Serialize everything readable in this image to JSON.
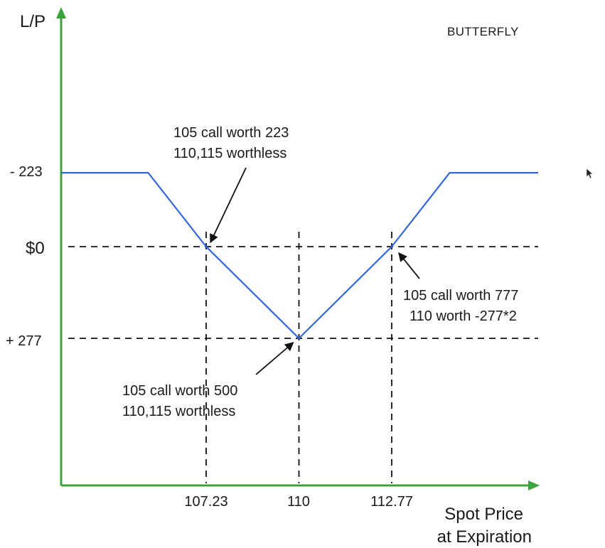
{
  "chart_data": {
    "type": "line",
    "title": "BUTTERFLY",
    "ylabel": "L/P",
    "xlabel_lines": [
      "Spot Price",
      "at Expiration"
    ],
    "x_tick_labels": [
      "107.23",
      "110",
      "112.77"
    ],
    "y_tick_labels": [
      "- 223",
      "$0",
      "+ 277"
    ],
    "series": [
      {
        "points": [
          {
            "x": 105.5,
            "y": 223
          },
          {
            "x": 107.23,
            "y": 0
          },
          {
            "x": 110,
            "y": -277
          },
          {
            "x": 112.77,
            "y": 0
          },
          {
            "x": 114.5,
            "y": 223
          }
        ]
      }
    ],
    "reference_lines": {
      "horizontal": [
        0,
        -277
      ],
      "vertical": [
        107.23,
        110,
        112.77
      ]
    },
    "annotations": [
      {
        "lines": [
          "105 call worth 223",
          "110,115 worthless"
        ],
        "points_to": {
          "x": 107.23,
          "y": 0
        }
      },
      {
        "lines": [
          "105 call worth 500",
          "110,115 worthless"
        ],
        "points_to": {
          "x": 110,
          "y": -277
        }
      },
      {
        "lines": [
          "105 call worth 777",
          "110 worth -277*2"
        ],
        "points_to": {
          "x": 112.77,
          "y": 0
        }
      }
    ],
    "colors": {
      "axis": "#3aa33a",
      "payoff_line": "#3366dd",
      "reference_lines": "#111111"
    },
    "grid": false
  }
}
